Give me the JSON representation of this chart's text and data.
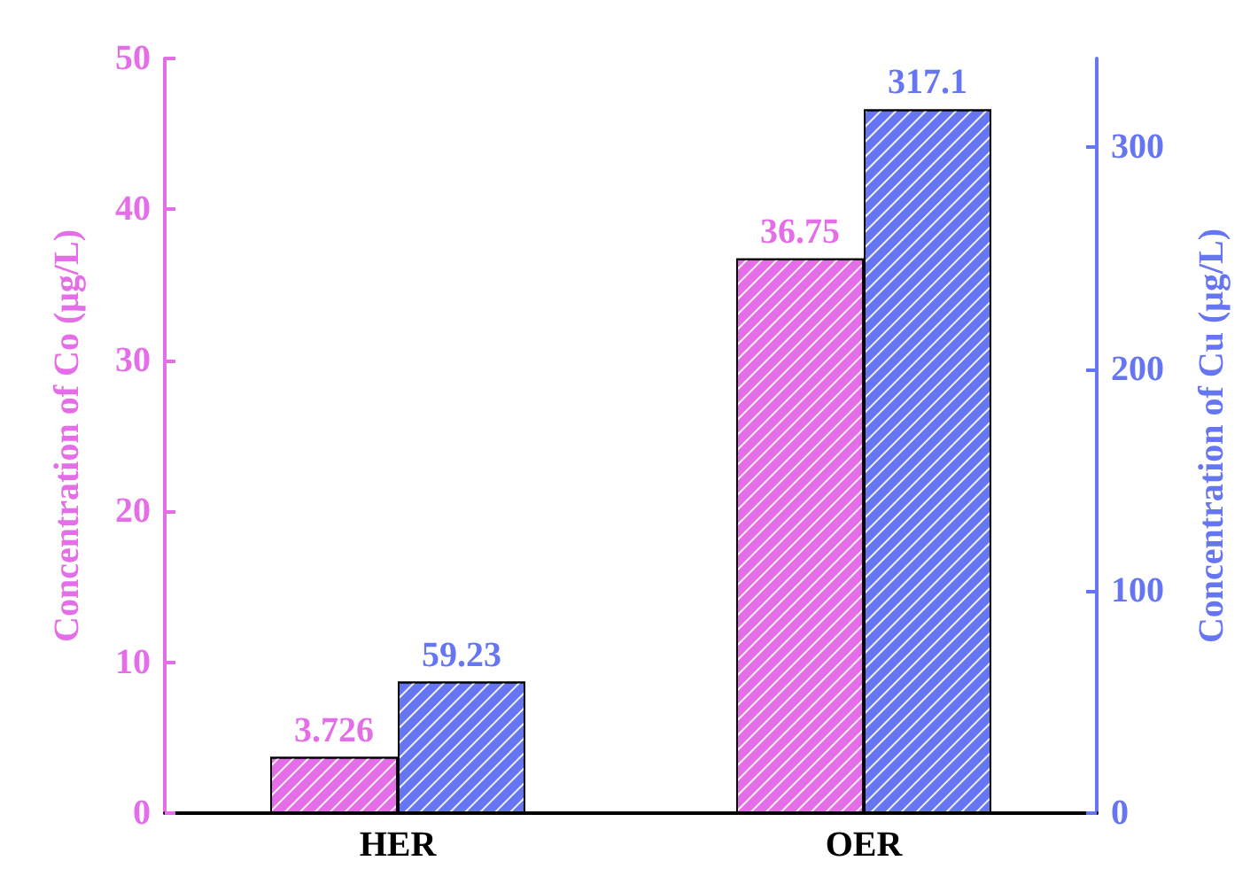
{
  "chart_data": {
    "type": "bar",
    "categories": [
      "HER",
      "OER"
    ],
    "ylabel": "Concentration of Co (μg/L)",
    "y2label": "Concentration of Cu (μg/L)",
    "series": [
      {
        "color": "#e46ee8",
        "values": [
          3.726,
          36.75
        ]
      },
      {
        "color": "#6676f2",
        "values": [
          59.23,
          317.1
        ],
        "axis": "y2"
      }
    ],
    "ylim": [
      0,
      50
    ],
    "yticks": [
      0,
      10,
      20,
      30,
      40,
      50
    ],
    "y2lim": [
      0,
      340
    ],
    "y2ticks": [
      0,
      100,
      200,
      300
    ],
    "data_labels": true,
    "grid": false
  }
}
